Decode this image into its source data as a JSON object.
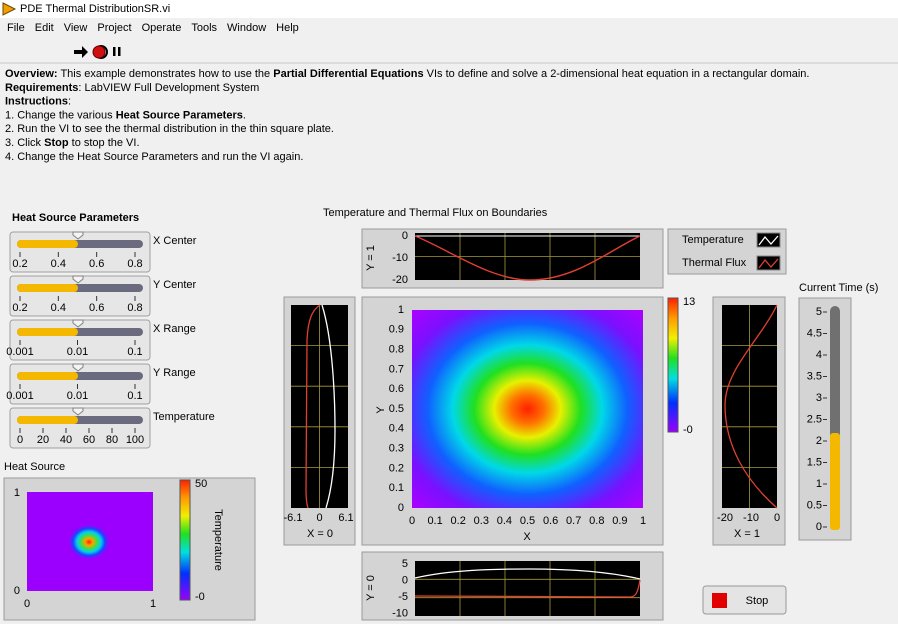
{
  "window": {
    "title": "PDE Thermal DistributionSR.vi"
  },
  "menu": [
    "File",
    "Edit",
    "View",
    "Project",
    "Operate",
    "Tools",
    "Window",
    "Help"
  ],
  "description": [
    [
      {
        "text": "Overview:",
        "bold": true
      },
      {
        "text": " This example demonstrates how to use the "
      },
      {
        "text": "Partial Differential Equations",
        "bold": true
      },
      {
        "text": " VIs to define and solve a 2-dimensional heat equation in a rectangular domain."
      }
    ],
    [
      {
        "text": "Requirements",
        "bold": true
      },
      {
        "text": ": LabVIEW Full Development System"
      }
    ],
    [
      {
        "text": "Instructions",
        "bold": true
      },
      {
        "text": ":"
      }
    ],
    [
      {
        "text": "1. Change the various "
      },
      {
        "text": "Heat Source Parameters",
        "bold": true
      },
      {
        "text": "."
      }
    ],
    [
      {
        "text": "2. Run the VI to see the thermal distribution in the thin square plate."
      }
    ],
    [
      {
        "text": "3. Click "
      },
      {
        "text": "Stop",
        "bold": true
      },
      {
        "text": " to stop the VI."
      }
    ],
    [
      {
        "text": "4. Change the Heat Source Parameters and run the VI again."
      }
    ]
  ],
  "heat_source_parameters": {
    "title": "Heat Source Parameters",
    "sliders": [
      {
        "label": "X Center",
        "ticks": [
          "0.2",
          "0.4",
          "0.6",
          "0.8"
        ]
      },
      {
        "label": "Y Center",
        "ticks": [
          "0.2",
          "0.4",
          "0.6",
          "0.8"
        ]
      },
      {
        "label": "X Range",
        "ticks": [
          "0.001",
          "0.01",
          "0.1"
        ]
      },
      {
        "label": "Y Range",
        "ticks": [
          "0.001",
          "0.01",
          "0.1"
        ]
      },
      {
        "label": "Temperature",
        "ticks": [
          "0",
          "20",
          "40",
          "60",
          "80",
          "100"
        ]
      }
    ]
  },
  "heat_source": {
    "label": "Heat Source",
    "xticks": [
      "0",
      "1"
    ],
    "yticks": [
      "1",
      "0"
    ],
    "colorbar_ticks": [
      "50",
      "-0"
    ],
    "colorbar_label": "Temperature"
  },
  "boundaries": {
    "title": "Temperature and Thermal Flux on Boundaries",
    "top": {
      "axis_label": "Y = 1",
      "yticks": [
        "0",
        "-10",
        "-20"
      ]
    },
    "left": {
      "caption": "X = 0",
      "xticks": [
        "-6.1",
        "0",
        "6.1"
      ]
    },
    "main": {
      "xlabel": "X",
      "ylabel": "Y",
      "ticks": [
        "0",
        "0.1",
        "0.2",
        "0.3",
        "0.4",
        "0.5",
        "0.6",
        "0.7",
        "0.8",
        "0.9",
        "1"
      ],
      "colorbar_ticks": [
        "13",
        "-0"
      ]
    },
    "right": {
      "caption": "X = 1",
      "xticks": [
        "-20",
        "-10",
        "0"
      ]
    },
    "bottom": {
      "axis_label": "Y = 0",
      "yticks": [
        "5",
        "0",
        "-5",
        "-10"
      ]
    },
    "legend": [
      "Temperature",
      "Thermal Flux"
    ]
  },
  "current_time": {
    "label": "Current Time (s)",
    "ticks": [
      "0",
      "0.5",
      "1",
      "1.5",
      "2",
      "2.5",
      "3",
      "3.5",
      "4",
      "4.5",
      "5"
    ]
  },
  "stop_button": "Stop"
}
